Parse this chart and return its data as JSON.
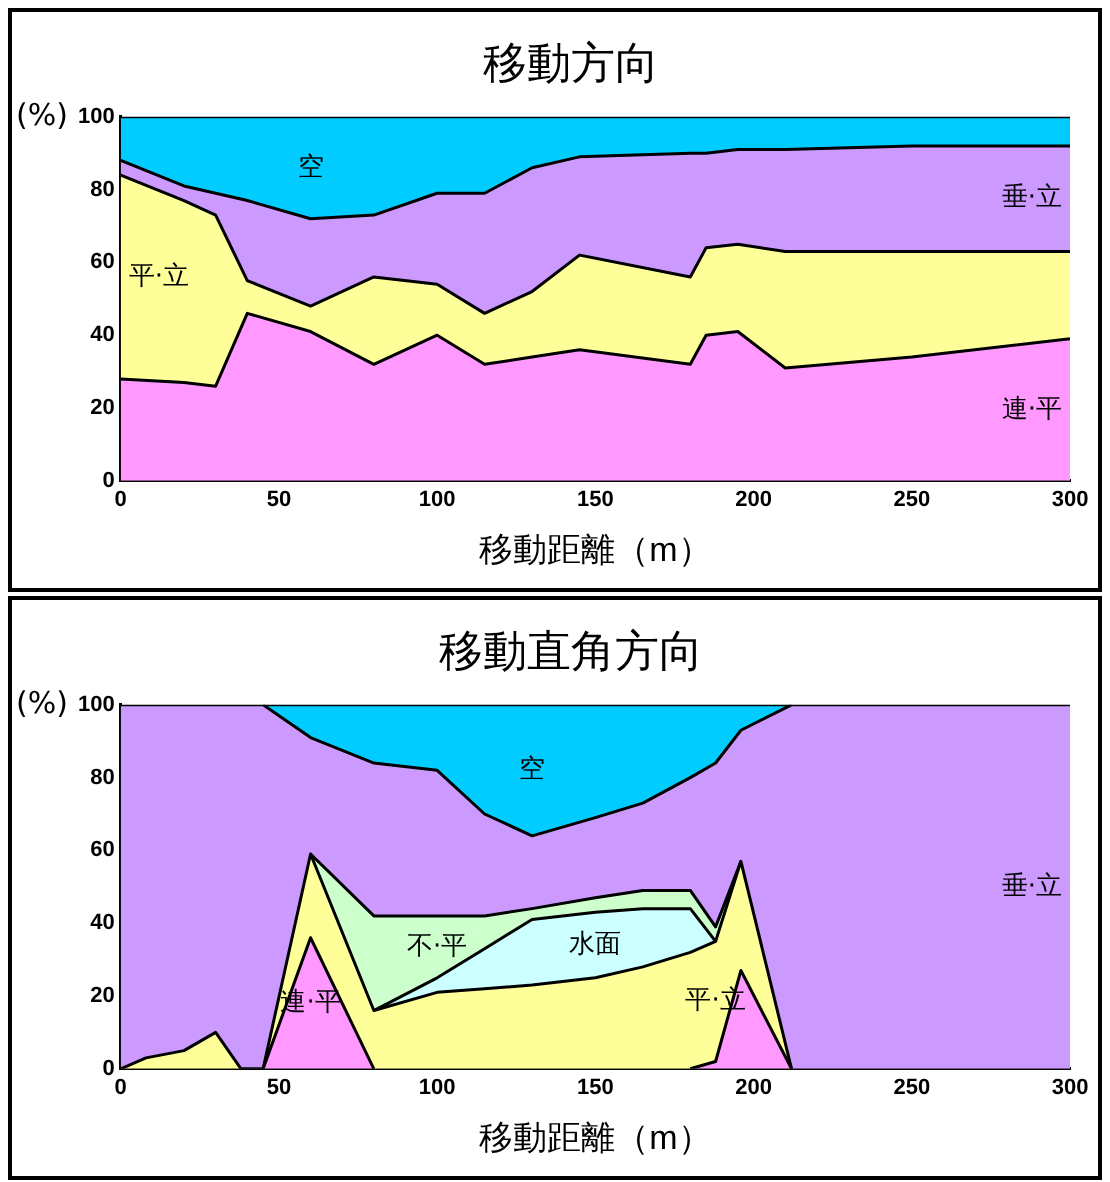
{
  "chart_data": [
    {
      "type": "area",
      "title": "移動方向",
      "xlabel": "移動距離（m）",
      "ylabel": "(%)",
      "stacked": true,
      "legend": false,
      "grid": false,
      "x": [
        0,
        20,
        30,
        40,
        60,
        80,
        100,
        115,
        130,
        145,
        180,
        185,
        195,
        210,
        250,
        300
      ],
      "xlim": [
        0,
        300
      ],
      "xticks": [
        0,
        50,
        100,
        150,
        200,
        250,
        300
      ],
      "ylim": [
        0,
        100
      ],
      "yticks": [
        0,
        20,
        40,
        60,
        80,
        100
      ],
      "series": [
        {
          "name": "連·平",
          "color": "#ff99ff",
          "values": [
            28,
            27,
            26,
            46,
            41,
            32,
            40,
            32,
            34,
            36,
            32,
            40,
            41,
            31,
            34,
            39
          ]
        },
        {
          "name": "平·立",
          "color": "#ffff99",
          "values": [
            56,
            50,
            47,
            9,
            7,
            24,
            14,
            14,
            18,
            26,
            24,
            24,
            24,
            32,
            29,
            24
          ]
        },
        {
          "name": "垂·立",
          "color": "#cc99ff",
          "values": [
            4,
            4,
            6,
            22,
            24,
            17,
            25,
            33,
            34,
            27,
            34,
            26,
            26,
            28,
            29,
            29
          ]
        },
        {
          "name": "空",
          "color": "#00ccff",
          "values": [
            12,
            19,
            21,
            23,
            28,
            27,
            21,
            21,
            14,
            11,
            10,
            10,
            9,
            9,
            8,
            8
          ]
        }
      ]
    },
    {
      "type": "area",
      "title": "移動直角方向",
      "xlabel": "移動距離（m）",
      "ylabel": "(%)",
      "stacked": true,
      "legend": false,
      "grid": false,
      "x": [
        0,
        8,
        20,
        30,
        38,
        45,
        60,
        80,
        100,
        115,
        130,
        150,
        165,
        180,
        188,
        196,
        212,
        300
      ],
      "xlim": [
        0,
        300
      ],
      "xticks": [
        0,
        50,
        100,
        150,
        200,
        250,
        300
      ],
      "ylim": [
        0,
        100
      ],
      "yticks": [
        0,
        20,
        40,
        60,
        80,
        100
      ],
      "series": [
        {
          "name": "連·平",
          "color": "#ff99ff",
          "values": [
            null,
            null,
            null,
            null,
            null,
            0,
            36,
            0,
            null,
            null,
            null,
            null,
            null,
            0,
            2,
            27,
            0,
            null
          ]
        },
        {
          "name": "平·立",
          "color": "#ffff99",
          "values": [
            0,
            3,
            5,
            10,
            0,
            0,
            23,
            16,
            21,
            22,
            23,
            25,
            28,
            32,
            33,
            30,
            0,
            null
          ]
        },
        {
          "name": "水面",
          "color": "#ccffff",
          "values": [
            null,
            null,
            null,
            null,
            null,
            null,
            null,
            0,
            4,
            11,
            18,
            18,
            16,
            12,
            0,
            null,
            null,
            null
          ]
        },
        {
          "name": "不·平",
          "color": "#ccffcc",
          "values": [
            null,
            null,
            null,
            null,
            null,
            null,
            0,
            26,
            17,
            9,
            3,
            4,
            5,
            5,
            4,
            0,
            null,
            null
          ]
        },
        {
          "name": "垂·立",
          "color": "#cc99ff",
          "values": [
            100,
            97,
            95,
            90,
            100,
            100,
            32,
            42,
            40,
            28,
            20,
            22,
            24,
            31,
            45,
            36,
            100,
            100
          ]
        },
        {
          "name": "空",
          "color": "#00ccff",
          "values": [
            null,
            null,
            null,
            null,
            null,
            0,
            9,
            16,
            18,
            30,
            36,
            31,
            27,
            20,
            16,
            7,
            0,
            null
          ]
        }
      ]
    }
  ]
}
